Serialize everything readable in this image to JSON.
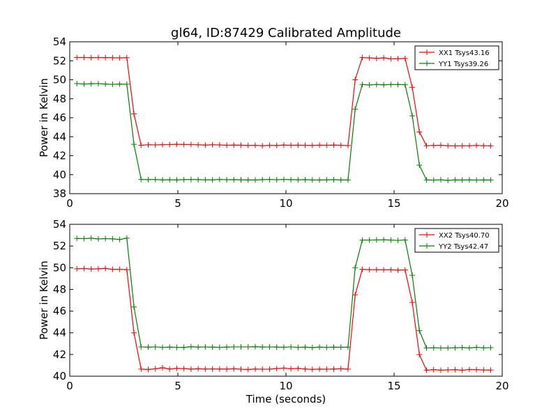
{
  "chart_data": [
    {
      "type": "line",
      "title": "gl64, ID:87429 Calibrated Amplitude",
      "xlabel": "",
      "ylabel": "Power in Kelvin",
      "xlim": [
        0,
        20
      ],
      "ylim": [
        38,
        54
      ],
      "x_ticks": [
        0,
        5,
        10,
        15,
        20
      ],
      "y_ticks": [
        38,
        40,
        42,
        44,
        46,
        48,
        50,
        52,
        54
      ],
      "grid": false,
      "legend_position": "top-right",
      "x": [
        0.33,
        0.66,
        0.99,
        1.32,
        1.65,
        1.98,
        2.31,
        2.64,
        2.97,
        3.3,
        3.63,
        3.96,
        4.29,
        4.62,
        4.95,
        5.28,
        5.61,
        5.94,
        6.27,
        6.6,
        6.93,
        7.26,
        7.59,
        7.92,
        8.25,
        8.58,
        8.91,
        9.24,
        9.57,
        9.9,
        10.23,
        10.56,
        10.89,
        11.22,
        11.55,
        11.88,
        12.21,
        12.54,
        12.87,
        13.2,
        13.53,
        13.86,
        14.19,
        14.52,
        14.85,
        15.18,
        15.51,
        15.84,
        16.17,
        16.5,
        16.83,
        17.16,
        17.49,
        17.82,
        18.15,
        18.48,
        18.81,
        19.14,
        19.47
      ],
      "series": [
        {
          "name": "XX1 Tsys43.16",
          "color": "#ff0000",
          "values": [
            52.35,
            52.35,
            52.33,
            52.35,
            52.34,
            52.32,
            52.3,
            52.33,
            46.4,
            43.1,
            43.15,
            43.14,
            43.16,
            43.17,
            43.2,
            43.18,
            43.17,
            43.15,
            43.12,
            43.15,
            43.14,
            43.1,
            43.12,
            43.11,
            43.08,
            43.1,
            43.05,
            43.1,
            43.08,
            43.12,
            43.1,
            43.11,
            43.1,
            43.09,
            43.11,
            43.1,
            43.12,
            43.1,
            43.07,
            50.0,
            52.35,
            52.3,
            52.25,
            52.3,
            52.2,
            52.22,
            52.25,
            49.2,
            44.5,
            43.05,
            43.08,
            43.1,
            43.05,
            43.03,
            43.04,
            43.05,
            43.08,
            43.05,
            43.04
          ]
        },
        {
          "name": "YY1 Tsys39.26",
          "color": "#008000",
          "values": [
            49.6,
            49.55,
            49.58,
            49.6,
            49.55,
            49.52,
            49.55,
            49.53,
            43.2,
            39.5,
            39.48,
            39.5,
            39.45,
            39.47,
            39.45,
            39.48,
            39.5,
            39.48,
            39.46,
            39.45,
            39.5,
            39.47,
            39.48,
            39.46,
            39.45,
            39.44,
            39.48,
            39.5,
            39.47,
            39.5,
            39.48,
            39.46,
            39.48,
            39.45,
            39.44,
            39.46,
            39.48,
            39.45,
            39.45,
            46.9,
            49.5,
            49.45,
            49.5,
            49.47,
            49.5,
            49.5,
            49.48,
            46.2,
            41.0,
            39.45,
            39.43,
            39.47,
            39.4,
            39.45,
            39.44,
            39.46,
            39.43,
            39.45,
            39.44
          ]
        }
      ]
    },
    {
      "type": "line",
      "title": "",
      "xlabel": "Time (seconds)",
      "ylabel": "Power in Kelvin",
      "xlim": [
        0,
        20
      ],
      "ylim": [
        40,
        54
      ],
      "x_ticks": [
        0,
        5,
        10,
        15,
        20
      ],
      "y_ticks": [
        40,
        42,
        44,
        46,
        48,
        50,
        52,
        54
      ],
      "grid": false,
      "legend_position": "top-right",
      "x": [
        0.33,
        0.66,
        0.99,
        1.32,
        1.65,
        1.98,
        2.31,
        2.64,
        2.97,
        3.3,
        3.63,
        3.96,
        4.29,
        4.62,
        4.95,
        5.28,
        5.61,
        5.94,
        6.27,
        6.6,
        6.93,
        7.26,
        7.59,
        7.92,
        8.25,
        8.58,
        8.91,
        9.24,
        9.57,
        9.9,
        10.23,
        10.56,
        10.89,
        11.22,
        11.55,
        11.88,
        12.21,
        12.54,
        12.87,
        13.2,
        13.53,
        13.86,
        14.19,
        14.52,
        14.85,
        15.18,
        15.51,
        15.84,
        16.17,
        16.5,
        16.83,
        17.16,
        17.49,
        17.82,
        18.15,
        18.48,
        18.81,
        19.14,
        19.47
      ],
      "series": [
        {
          "name": "XX2 Tsys40.70",
          "color": "#ff0000",
          "values": [
            49.9,
            49.92,
            49.88,
            49.9,
            49.93,
            49.85,
            49.86,
            49.82,
            44.0,
            40.65,
            40.62,
            40.68,
            40.78,
            40.66,
            40.72,
            40.7,
            40.65,
            40.68,
            40.66,
            40.67,
            40.66,
            40.65,
            40.68,
            40.64,
            40.62,
            40.66,
            40.64,
            40.65,
            40.7,
            40.75,
            40.68,
            40.72,
            40.66,
            40.63,
            40.65,
            40.64,
            40.66,
            40.68,
            40.65,
            47.5,
            49.85,
            49.82,
            49.82,
            49.8,
            49.8,
            49.78,
            49.79,
            46.8,
            42.0,
            40.55,
            40.6,
            40.55,
            40.58,
            40.6,
            40.55,
            40.62,
            40.6,
            40.57,
            40.56
          ]
        },
        {
          "name": "YY2 Tsys42.47",
          "color": "#008000",
          "values": [
            52.7,
            52.68,
            52.72,
            52.65,
            52.68,
            52.66,
            52.6,
            52.72,
            46.4,
            42.7,
            42.68,
            42.7,
            42.66,
            42.68,
            42.66,
            42.65,
            42.72,
            42.68,
            42.7,
            42.68,
            42.66,
            42.68,
            42.7,
            42.7,
            42.7,
            42.72,
            42.69,
            42.7,
            42.68,
            42.67,
            42.7,
            42.66,
            42.68,
            42.64,
            42.68,
            42.66,
            42.68,
            42.67,
            42.68,
            50.0,
            52.55,
            52.55,
            52.56,
            52.58,
            52.55,
            52.52,
            52.56,
            49.3,
            44.2,
            42.6,
            42.62,
            42.6,
            42.6,
            42.62,
            42.64,
            42.6,
            42.66,
            42.62,
            42.63
          ]
        }
      ]
    }
  ]
}
